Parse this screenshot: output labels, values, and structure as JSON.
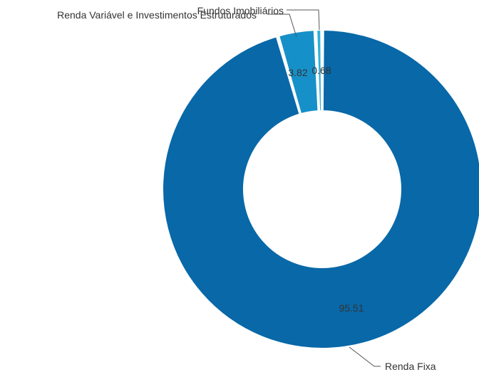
{
  "chart_data": {
    "type": "pie",
    "variant": "donut",
    "slices": [
      {
        "label": "Renda Fixa",
        "value": 95.51,
        "value_label": "95.51",
        "color": "#0868a8"
      },
      {
        "label": "Renda Variável e Investimentos Estruturados",
        "value": 3.82,
        "value_label": "3.82",
        "color": "#1690c8"
      },
      {
        "label": "Fundos Imobiliários",
        "value": 0.68,
        "value_label": "0.68",
        "color": "#2ab0dc"
      }
    ],
    "label_placement": "outside-with-leader-lines",
    "value_labels": "inside-slices",
    "background": "#ffffff",
    "slice_border_color": "#ffffff"
  }
}
